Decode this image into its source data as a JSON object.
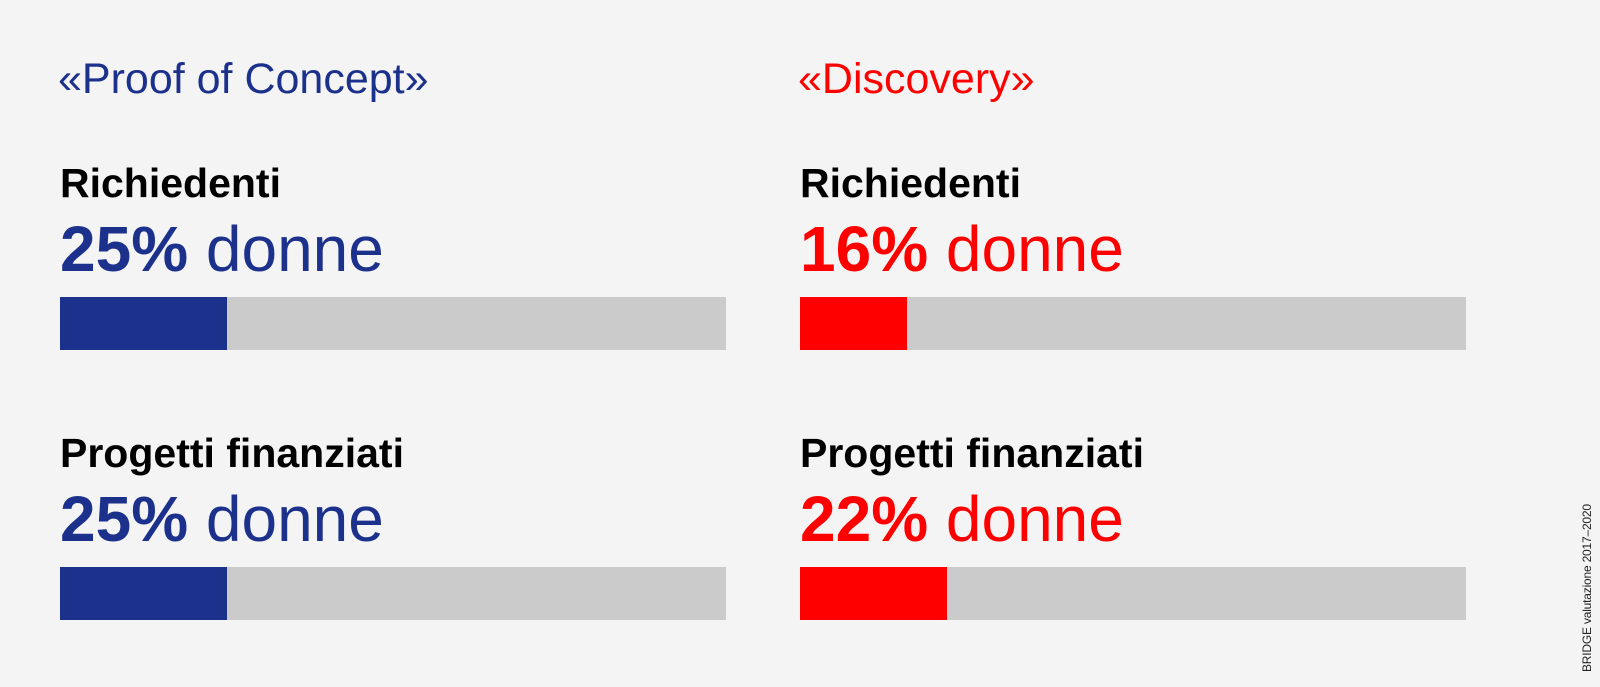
{
  "chart_data": [
    {
      "type": "bar",
      "title": "«Proof of Concept»",
      "color": "#1c318c",
      "track_color": "#cbcbcb",
      "categories": [
        "Richiedenti",
        "Progetti finanziati"
      ],
      "values": [
        25,
        25
      ],
      "value_suffix": "%",
      "value_text": [
        "25%",
        "25%"
      ],
      "unit_word": "donne",
      "ylim": [
        0,
        100
      ]
    },
    {
      "type": "bar",
      "title": "«Discovery»",
      "color": "#ff0000",
      "track_color": "#cbcbcb",
      "categories": [
        "Richiedenti",
        "Progetti finanziati"
      ],
      "values": [
        16,
        22
      ],
      "value_suffix": "%",
      "value_text": [
        "16%",
        "22%"
      ],
      "unit_word": "donne",
      "ylim": [
        0,
        100
      ]
    }
  ],
  "source_note": "BRIDGE valutazione 2017–2020"
}
